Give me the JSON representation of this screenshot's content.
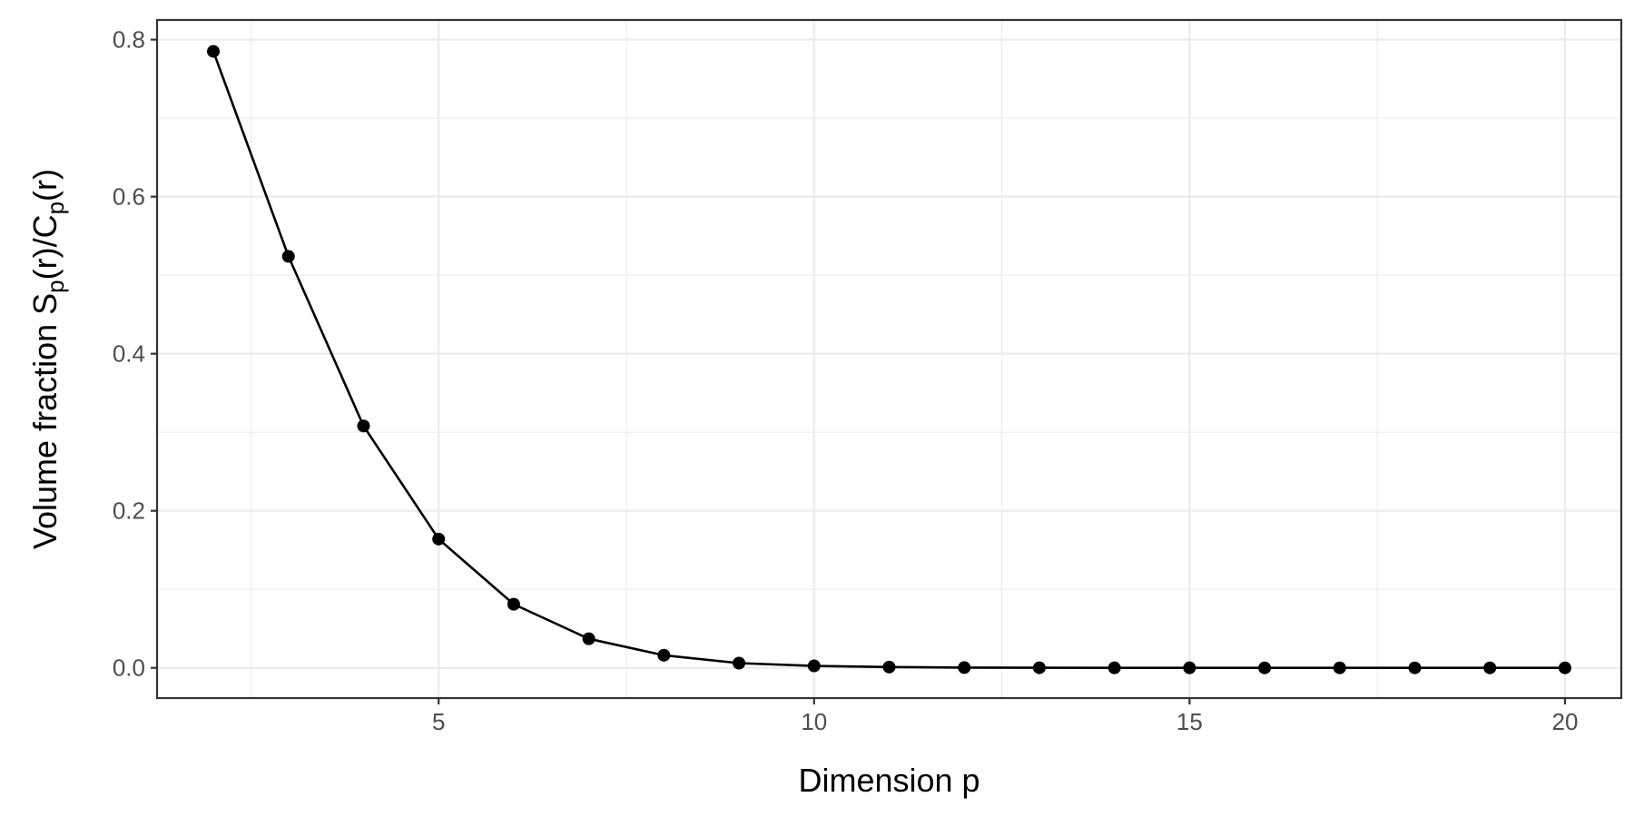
{
  "chart_data": {
    "type": "line",
    "title": "",
    "xlabel": "Dimension p",
    "ylabel_parts": [
      "Volume fraction S",
      "p",
      "(r)/C",
      "p",
      "(r)"
    ],
    "xlim": [
      1.25,
      20.75
    ],
    "ylim": [
      -0.0385,
      0.825
    ],
    "x_ticks": [
      5,
      10,
      15,
      20
    ],
    "x_tick_labels": [
      "5",
      "10",
      "15",
      "20"
    ],
    "y_ticks": [
      0.0,
      0.2,
      0.4,
      0.6,
      0.8
    ],
    "y_tick_labels": [
      "0.0",
      "0.2",
      "0.4",
      "0.6",
      "0.8"
    ],
    "grid": true,
    "legend": "none",
    "series": [
      {
        "color": "#000000",
        "marker": "circle",
        "x": [
          2,
          3,
          4,
          5,
          6,
          7,
          8,
          9,
          10,
          11,
          12,
          13,
          14,
          15,
          16,
          17,
          18,
          19,
          20
        ],
        "y": [
          0.785,
          0.524,
          0.308,
          0.164,
          0.081,
          0.037,
          0.016,
          0.006,
          0.0025,
          0.001,
          0.0003,
          0.0001,
          4e-05,
          1e-05,
          0.0,
          0.0,
          0.0,
          0.0,
          0.0
        ]
      }
    ]
  }
}
